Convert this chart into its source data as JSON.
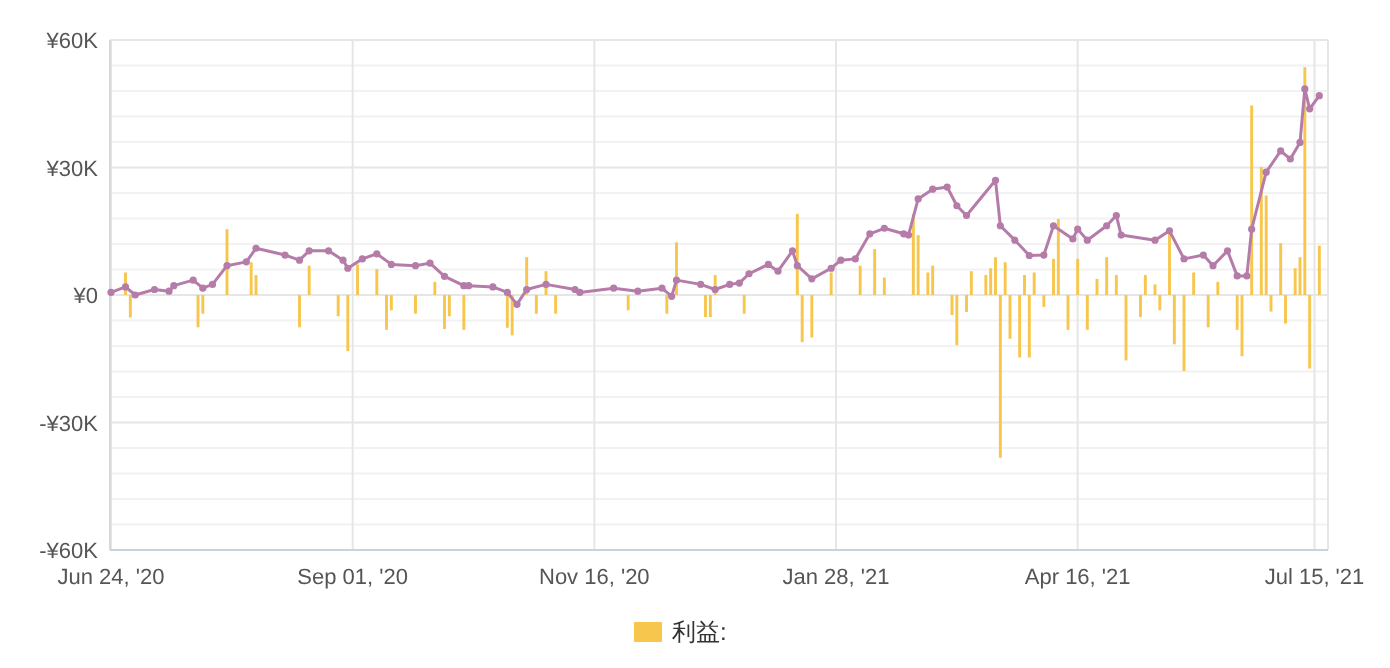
{
  "chart_data": {
    "type": "bar",
    "categories": [
      "Jun 24, '20",
      null,
      null,
      null,
      null,
      null,
      null,
      null,
      null,
      null,
      null,
      null,
      null,
      null,
      null,
      null,
      null,
      null,
      null,
      null,
      null,
      null,
      null,
      null,
      null,
      null,
      null,
      null,
      null,
      null,
      null,
      null,
      null,
      null,
      null,
      null,
      null,
      null,
      null,
      null,
      null,
      null,
      null,
      null,
      null,
      null,
      null,
      null,
      null,
      null,
      "Sep 01, '20",
      null,
      null,
      null,
      null,
      null,
      null,
      null,
      null,
      null,
      null,
      null,
      null,
      null,
      null,
      null,
      null,
      null,
      null,
      null,
      null,
      null,
      null,
      null,
      null,
      null,
      null,
      null,
      null,
      null,
      null,
      null,
      null,
      null,
      null,
      null,
      null,
      null,
      null,
      null,
      null,
      null,
      null,
      null,
      null,
      null,
      null,
      null,
      null,
      null,
      "Nov 16, '20",
      null,
      null,
      null,
      null,
      null,
      null,
      null,
      null,
      null,
      null,
      null,
      null,
      null,
      null,
      null,
      null,
      null,
      null,
      null,
      null,
      null,
      null,
      null,
      null,
      null,
      null,
      null,
      null,
      null,
      null,
      null,
      null,
      null,
      null,
      null,
      null,
      null,
      null,
      null,
      null,
      null,
      null,
      null,
      null,
      null,
      null,
      null,
      null,
      null,
      "Jan 28, '21",
      null,
      null,
      null,
      null,
      null,
      null,
      null,
      null,
      null,
      null,
      null,
      null,
      null,
      null,
      null,
      null,
      null,
      null,
      null,
      null,
      null,
      null,
      null,
      null,
      null,
      null,
      null,
      null,
      null,
      null,
      null,
      null,
      null,
      null,
      null,
      null,
      null,
      null,
      null,
      null,
      null,
      null,
      null,
      null,
      null,
      null,
      null,
      null,
      null,
      "Apr 16, '21",
      null,
      null,
      null,
      null,
      null,
      null,
      null,
      null,
      null,
      null,
      null,
      null,
      null,
      null,
      null,
      null,
      null,
      null,
      null,
      null,
      null,
      null,
      null,
      null,
      null,
      null,
      null,
      null,
      null,
      null,
      null,
      null,
      null,
      null,
      null,
      null,
      null,
      null,
      null,
      null,
      null,
      null,
      null,
      null,
      null,
      null,
      null,
      null,
      "Jul 15, '21",
      null,
      null
    ],
    "ylim": [
      -60000,
      60000
    ],
    "yticks": [
      {
        "value": -60000,
        "label": "-¥60K"
      },
      {
        "value": -54000,
        "label": null
      },
      {
        "value": -48000,
        "label": null
      },
      {
        "value": -42000,
        "label": null
      },
      {
        "value": -36000,
        "label": null
      },
      {
        "value": -30000,
        "label": "-¥30K"
      },
      {
        "value": -24000,
        "label": null
      },
      {
        "value": -18000,
        "label": null
      },
      {
        "value": -12000,
        "label": null
      },
      {
        "value": -6000,
        "label": null
      },
      {
        "value": 0,
        "label": "¥0"
      },
      {
        "value": 6000,
        "label": null
      },
      {
        "value": 12000,
        "label": null
      },
      {
        "value": 18000,
        "label": null
      },
      {
        "value": 24000,
        "label": null
      },
      {
        "value": 30000,
        "label": "¥30K"
      },
      {
        "value": 36000,
        "label": null
      },
      {
        "value": 42000,
        "label": null
      },
      {
        "value": 48000,
        "label": null
      },
      {
        "value": 54000,
        "label": null
      },
      {
        "value": 60000,
        "label": "¥60K"
      }
    ],
    "grid": true,
    "legend": "bottom",
    "marker": "circle",
    "line_style": "solid",
    "series": [
      {
        "name": "利益:",
        "color": "#f7c64d",
        "values": [
          null,
          null,
          null,
          5300,
          -5300,
          null,
          null,
          null,
          null,
          null,
          null,
          null,
          null,
          null,
          null,
          null,
          null,
          null,
          -7600,
          -4400,
          null,
          null,
          null,
          null,
          15500,
          null,
          null,
          null,
          null,
          7700,
          4700,
          null,
          null,
          null,
          null,
          null,
          null,
          null,
          null,
          -7600,
          null,
          6900,
          null,
          null,
          null,
          null,
          null,
          -5000,
          null,
          -13200,
          null,
          7200,
          null,
          null,
          null,
          6100,
          null,
          -8200,
          -3600,
          null,
          null,
          null,
          null,
          -4400,
          null,
          null,
          null,
          3100,
          null,
          -8000,
          -5000,
          null,
          null,
          -8200,
          null,
          null,
          null,
          null,
          null,
          null,
          null,
          null,
          -7700,
          -9500,
          null,
          null,
          8900,
          null,
          -4400,
          null,
          5600,
          null,
          -4400,
          null,
          null,
          null,
          null,
          null,
          null,
          null,
          null,
          null,
          null,
          null,
          null,
          null,
          null,
          -3600,
          null,
          null,
          null,
          null,
          null,
          null,
          null,
          -4400,
          null,
          12400,
          null,
          null,
          null,
          null,
          null,
          -5200,
          -5200,
          4700,
          null,
          null,
          null,
          null,
          null,
          -4400,
          null,
          null,
          null,
          null,
          null,
          null,
          null,
          null,
          null,
          null,
          19100,
          -11100,
          null,
          -10000,
          null,
          null,
          null,
          5300,
          null,
          null,
          null,
          null,
          null,
          6900,
          null,
          null,
          10800,
          null,
          4100,
          null,
          null,
          null,
          null,
          null,
          19100,
          14100,
          null,
          5300,
          6900,
          null,
          null,
          null,
          -4700,
          -11800,
          null,
          -4000,
          5600,
          null,
          null,
          4700,
          6300,
          8900,
          -38300,
          7700,
          -10300,
          null,
          -14700,
          4700,
          -14700,
          5300,
          null,
          -2800,
          null,
          8500,
          17900,
          null,
          -8200,
          null,
          8500,
          null,
          -8200,
          null,
          3800,
          null,
          8900,
          null,
          4700,
          null,
          -15400,
          null,
          null,
          -5200,
          4700,
          null,
          2500,
          -3600,
          null,
          14700,
          -11600,
          null,
          -17900,
          null,
          5300,
          null,
          null,
          -7600,
          null,
          3100,
          null,
          null,
          null,
          -8200,
          -14400,
          null,
          44600,
          null,
          30100,
          23400,
          -3900,
          null,
          12200,
          -6700,
          null,
          6300,
          8900,
          53600,
          -17300,
          null,
          11600,
          null
        ]
      },
      {
        "type": "line",
        "color": "#b57ca9",
        "values": [
          600,
          null,
          null,
          1900,
          null,
          0,
          null,
          null,
          null,
          1300,
          null,
          null,
          900,
          2200,
          null,
          null,
          null,
          3500,
          null,
          1600,
          null,
          2500,
          null,
          null,
          6900,
          null,
          null,
          null,
          7800,
          null,
          11000,
          null,
          null,
          null,
          null,
          null,
          9400,
          null,
          null,
          8200,
          null,
          10400,
          null,
          null,
          null,
          10400,
          null,
          null,
          8200,
          6300,
          null,
          null,
          8500,
          null,
          null,
          9700,
          null,
          null,
          7200,
          null,
          null,
          null,
          null,
          6900,
          null,
          null,
          7500,
          null,
          null,
          4400,
          null,
          null,
          null,
          2200,
          2200,
          null,
          null,
          null,
          null,
          1900,
          null,
          null,
          600,
          null,
          -2200,
          null,
          1300,
          null,
          null,
          null,
          2500,
          null,
          null,
          null,
          null,
          null,
          1300,
          600,
          null,
          null,
          null,
          null,
          null,
          null,
          1600,
          null,
          null,
          null,
          null,
          900,
          null,
          null,
          null,
          null,
          1600,
          null,
          -300,
          3500,
          null,
          null,
          null,
          null,
          2500,
          null,
          null,
          1300,
          null,
          null,
          2500,
          null,
          2800,
          null,
          5000,
          null,
          null,
          null,
          7200,
          null,
          5600,
          null,
          null,
          10400,
          6900,
          null,
          null,
          3800,
          null,
          null,
          null,
          6300,
          null,
          8200,
          null,
          null,
          8500,
          null,
          null,
          14400,
          null,
          null,
          15700,
          null,
          null,
          null,
          14400,
          14100,
          null,
          22600,
          null,
          null,
          24900,
          null,
          null,
          25400,
          null,
          21000,
          null,
          18700,
          null,
          null,
          null,
          null,
          null,
          27000,
          16300,
          null,
          null,
          12900,
          null,
          null,
          9300,
          null,
          null,
          9400,
          null,
          16300,
          null,
          null,
          null,
          13200,
          15500,
          null,
          12900,
          null,
          null,
          null,
          16300,
          null,
          18700,
          14100,
          null,
          null,
          null,
          null,
          null,
          null,
          12900,
          null,
          null,
          15100,
          null,
          null,
          8500,
          null,
          null,
          null,
          9400,
          null,
          6900,
          null,
          null,
          10400,
          null,
          4500,
          null,
          4500,
          15500,
          null,
          null,
          28900,
          null,
          null,
          33900,
          null,
          32000,
          null,
          35900,
          48500,
          43800,
          null,
          46900,
          null
        ]
      }
    ]
  }
}
